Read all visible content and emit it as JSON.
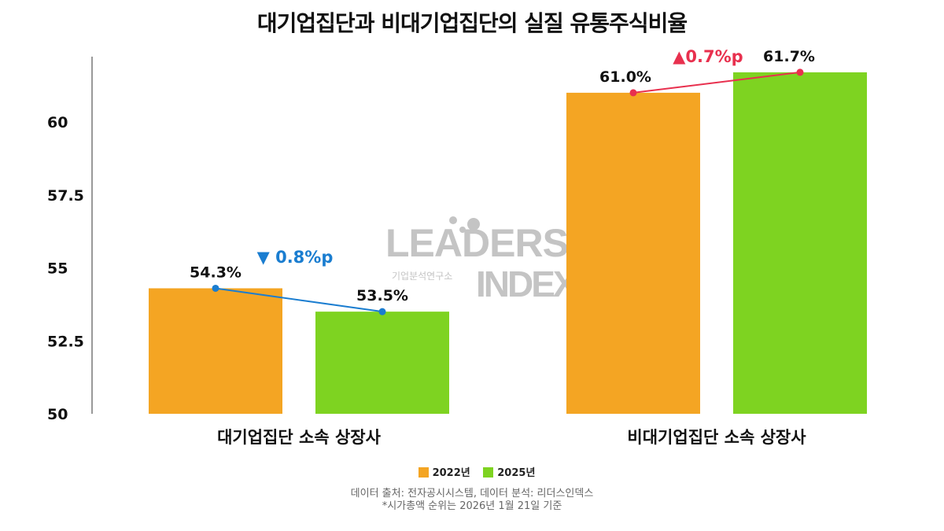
{
  "chart_data": {
    "type": "bar",
    "title": "대기업집단과 비대기업집단의 실질 유통주식비율",
    "categories": [
      "대기업집단 소속 상장사",
      "비대기업집단 소속 상장사"
    ],
    "series": [
      {
        "name": "2022년",
        "color": "#F4A523",
        "values": [
          54.3,
          61.0
        ],
        "labels": [
          "54.3%",
          "61.0%"
        ]
      },
      {
        "name": "2025년",
        "color": "#7ED321",
        "values": [
          53.5,
          61.7
        ],
        "labels": [
          "53.5%",
          "61.7%"
        ]
      }
    ],
    "changes": [
      {
        "label": "▼ 0.8%p",
        "color": "#1A7DD0"
      },
      {
        "label": "▲0.7%p",
        "color": "#E8304E"
      }
    ],
    "ylim": [
      50,
      62.2
    ],
    "yticks": [
      50,
      52.5,
      55,
      57.5,
      60
    ],
    "ytick_labels": [
      "50",
      "52.5",
      "55",
      "57.5",
      "60"
    ],
    "legend_position": "bottom",
    "grid": false
  },
  "watermark": {
    "line1": "LEADERS",
    "line2": "INDEX",
    "sub": "기업분석연구소"
  },
  "footer": {
    "source": "데이터 출처: 전자공시시스템, 데이터 분석: 리더스인덱스",
    "note": "*시가총액 순위는 2026년 1월 21일 기준"
  }
}
